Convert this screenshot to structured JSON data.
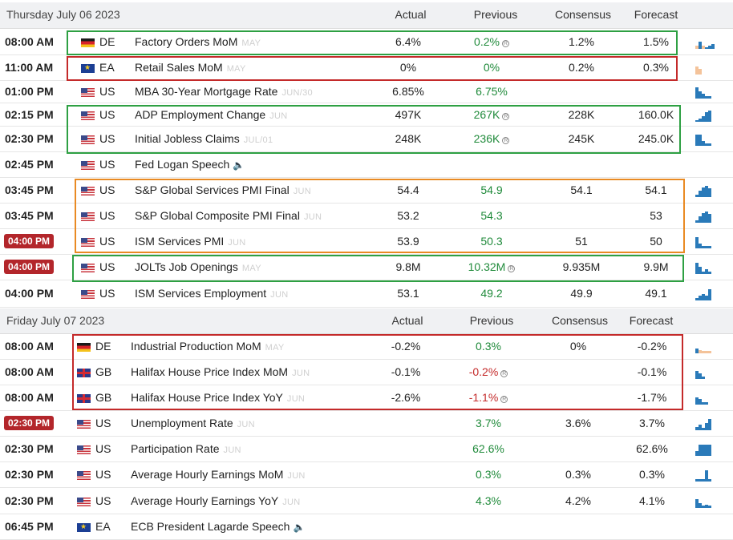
{
  "days": [
    {
      "title": "Thursday July 06 2023",
      "columns": {
        "actual": "Actual",
        "previous": "Previous",
        "consensus": "Consensus",
        "forecast": "Forecast"
      },
      "rows": [
        {
          "time": "08:00 AM",
          "flag": "de",
          "country": "DE",
          "event": "Factory Orders MoM",
          "period": "MAY",
          "actual": "6.4%",
          "previous": "0.2%",
          "prev_color": "green",
          "revised": true,
          "consensus": "1.2%",
          "forecast": "1.5%",
          "badge": false
        },
        {
          "time": "11:00 AM",
          "flag": "eu",
          "country": "EA",
          "event": "Retail Sales MoM",
          "period": "MAY",
          "actual": "0%",
          "previous": "0%",
          "prev_color": "green",
          "revised": false,
          "consensus": "0.2%",
          "forecast": "0.3%",
          "badge": false
        },
        {
          "time": "01:00 PM",
          "flag": "us",
          "country": "US",
          "event": "MBA 30-Year Mortgage Rate",
          "period": "JUN/30",
          "actual": "6.85%",
          "previous": "6.75%",
          "prev_color": "green",
          "revised": false,
          "consensus": "",
          "forecast": "",
          "badge": false
        },
        {
          "time": "02:15 PM",
          "flag": "us",
          "country": "US",
          "event": "ADP Employment Change",
          "period": "JUN",
          "actual": "497K",
          "previous": "267K",
          "prev_color": "green",
          "revised": true,
          "consensus": "228K",
          "forecast": "160.0K",
          "badge": false
        },
        {
          "time": "02:30 PM",
          "flag": "us",
          "country": "US",
          "event": "Initial Jobless Claims",
          "period": "JUL/01",
          "actual": "248K",
          "previous": "236K",
          "prev_color": "green",
          "revised": true,
          "consensus": "245K",
          "forecast": "245.0K",
          "badge": false
        },
        {
          "time": "02:45 PM",
          "flag": "us",
          "country": "US",
          "event": "Fed Logan Speech",
          "period": "",
          "speech": true,
          "actual": "",
          "previous": "",
          "prev_color": "green",
          "revised": false,
          "consensus": "",
          "forecast": "",
          "badge": false
        },
        {
          "time": "03:45 PM",
          "flag": "us",
          "country": "US",
          "event": "S&P Global Services PMI Final",
          "period": "JUN",
          "actual": "54.4",
          "previous": "54.9",
          "prev_color": "green",
          "revised": false,
          "consensus": "54.1",
          "forecast": "54.1",
          "badge": false
        },
        {
          "time": "03:45 PM",
          "flag": "us",
          "country": "US",
          "event": "S&P Global Composite PMI Final",
          "period": "JUN",
          "actual": "53.2",
          "previous": "54.3",
          "prev_color": "green",
          "revised": false,
          "consensus": "",
          "forecast": "53",
          "badge": false
        },
        {
          "time": "04:00 PM",
          "flag": "us",
          "country": "US",
          "event": "ISM Services PMI",
          "period": "JUN",
          "actual": "53.9",
          "previous": "50.3",
          "prev_color": "green",
          "revised": false,
          "consensus": "51",
          "forecast": "50",
          "badge": true
        },
        {
          "time": "04:00 PM",
          "flag": "us",
          "country": "US",
          "event": "JOLTs Job Openings",
          "period": "MAY",
          "actual": "9.8M",
          "previous": "10.32M",
          "prev_color": "green",
          "revised": true,
          "consensus": "9.935M",
          "forecast": "9.9M",
          "badge": true
        },
        {
          "time": "04:00 PM",
          "flag": "us",
          "country": "US",
          "event": "ISM Services Employment",
          "period": "JUN",
          "actual": "53.1",
          "previous": "49.2",
          "prev_color": "green",
          "revised": false,
          "consensus": "49.9",
          "forecast": "49.1",
          "badge": false
        }
      ]
    },
    {
      "title": "Friday July 07 2023",
      "columns": {
        "actual": "Actual",
        "previous": "Previous",
        "consensus": "Consensus",
        "forecast": "Forecast"
      },
      "rows": [
        {
          "time": "08:00 AM",
          "flag": "de",
          "country": "DE",
          "event": "Industrial Production MoM",
          "period": "MAY",
          "actual": "-0.2%",
          "previous": "0.3%",
          "prev_color": "green",
          "revised": false,
          "consensus": "0%",
          "forecast": "-0.2%",
          "badge": false
        },
        {
          "time": "08:00 AM",
          "flag": "gb",
          "country": "GB",
          "event": "Halifax House Price Index MoM",
          "period": "JUN",
          "actual": "-0.1%",
          "previous": "-0.2%",
          "prev_color": "red",
          "revised": true,
          "consensus": "",
          "forecast": "-0.1%",
          "badge": false
        },
        {
          "time": "08:00 AM",
          "flag": "gb",
          "country": "GB",
          "event": "Halifax House Price Index YoY",
          "period": "JUN",
          "actual": "-2.6%",
          "previous": "-1.1%",
          "prev_color": "red",
          "revised": true,
          "consensus": "",
          "forecast": "-1.7%",
          "badge": false
        },
        {
          "time": "02:30 PM",
          "flag": "us",
          "country": "US",
          "event": "Unemployment Rate",
          "period": "JUN",
          "actual": "",
          "previous": "3.7%",
          "prev_color": "green",
          "revised": false,
          "consensus": "3.6%",
          "forecast": "3.7%",
          "badge": true
        },
        {
          "time": "02:30 PM",
          "flag": "us",
          "country": "US",
          "event": "Participation Rate",
          "period": "JUN",
          "actual": "",
          "previous": "62.6%",
          "prev_color": "green",
          "revised": false,
          "consensus": "",
          "forecast": "62.6%",
          "badge": false
        },
        {
          "time": "02:30 PM",
          "flag": "us",
          "country": "US",
          "event": "Average Hourly Earnings MoM",
          "period": "JUN",
          "actual": "",
          "previous": "0.3%",
          "prev_color": "green",
          "revised": false,
          "consensus": "0.3%",
          "forecast": "0.3%",
          "badge": false
        },
        {
          "time": "02:30 PM",
          "flag": "us",
          "country": "US",
          "event": "Average Hourly Earnings YoY",
          "period": "JUN",
          "actual": "",
          "previous": "4.3%",
          "prev_color": "green",
          "revised": false,
          "consensus": "4.2%",
          "forecast": "4.1%",
          "badge": false
        },
        {
          "time": "06:45 PM",
          "flag": "eu",
          "country": "EA",
          "event": "ECB President Lagarde Speech",
          "period": "",
          "speech": true,
          "actual": "",
          "previous": "",
          "prev_color": "green",
          "revised": false,
          "consensus": "",
          "forecast": "",
          "badge": false
        }
      ]
    }
  ],
  "icons": {
    "revised": "revised-info-icon",
    "speech": "speaker-icon",
    "sparkline": "sparkline-chart-icon"
  },
  "colors": {
    "positive": "#1f8a3a",
    "negative": "#c42a2a",
    "badge": "#b3262b",
    "box_green": "#2ea043",
    "box_red": "#c42a2a",
    "box_orange": "#e98a23",
    "spark": "#2a7ab9"
  }
}
